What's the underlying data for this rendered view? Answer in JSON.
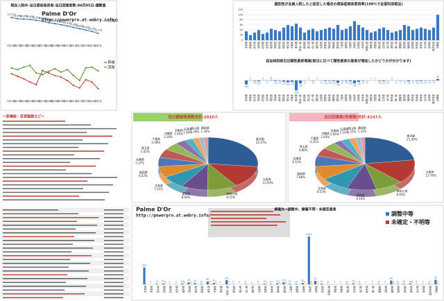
{
  "notes": {
    "heading": "～新機能・変更履歴など～"
  },
  "chart_data": [
    {
      "type": "line",
      "title": "現在入院中-当日感染発表者-当日回復者数-06月05日-趨勢版",
      "annotations": [
        "Palme D'Or",
        "http://powerpro.at.webry.info/"
      ],
      "categories": [
        "5月22日",
        "5月23日",
        "5月24日",
        "5月25日",
        "5月26日",
        "5月27日",
        "5月28日",
        "5月29日",
        "5月30日",
        "5月31日",
        "6月1日",
        "6月2日",
        "6月3日",
        "6月4日",
        "6月5日"
      ],
      "ylim": [
        14000,
        20000
      ],
      "series": [
        {
          "name": "入院中",
          "color": "#2f6db5",
          "values": [
            19213,
            18950,
            18870,
            18820,
            18610,
            18400,
            18100,
            17900,
            17650,
            17400,
            17080,
            16800,
            16500,
            16200,
            15773
          ],
          "value_labels": [
            "19,213",
            "18,950",
            "18,870",
            "18,820",
            "18,610",
            "18,400",
            "18,100",
            "17,900",
            "17,650",
            "17,400",
            "17,080",
            "16,800",
            "16,500",
            "16,200",
            "15,773"
          ]
        }
      ]
    },
    {
      "type": "line",
      "categories": [
        "5月22日",
        "5月23日",
        "5月24日",
        "5月25日",
        "5月26日",
        "5月27日",
        "5月28日",
        "5月29日",
        "5月30日",
        "5月31日",
        "6月1日",
        "6月2日",
        "6月3日",
        "6月4日",
        "6月5日"
      ],
      "ylim": [
        1000,
        6000
      ],
      "series": [
        {
          "name": "新規",
          "color": "#c0392b",
          "values": [
            3800,
            3500,
            3200,
            2800,
            2500,
            4200,
            3900,
            3600,
            3400,
            3000,
            2400,
            2100,
            3100,
            2800,
            2010
          ]
        },
        {
          "name": "回復",
          "color": "#4e8f2b",
          "values": [
            4500,
            4300,
            4600,
            4800,
            3900,
            3700,
            4100,
            4400,
            4000,
            4300,
            3600,
            3000,
            4500,
            4600,
            4147
          ]
        }
      ]
    },
    {
      "type": "bar",
      "title": "識別性が全員入院したと仮定した場合の感染症病床使用率(100%で全室利用相当)",
      "categories": [
        "北海道",
        "青森県",
        "岩手県",
        "宮城県",
        "秋田県",
        "山形県",
        "福島県",
        "茨城県",
        "栃木県",
        "群馬県",
        "埼玉県",
        "千葉県",
        "東京都",
        "神奈川県",
        "新潟県",
        "富山県",
        "石川県",
        "福井県",
        "山梨県",
        "長野県",
        "岐阜県",
        "静岡県",
        "愛知県",
        "三重県",
        "滋賀県",
        "京都府",
        "大阪府",
        "兵庫県",
        "奈良県",
        "和歌山県",
        "鳥取県",
        "島根県",
        "岡山県",
        "広島県",
        "山口県",
        "徳島県",
        "香川県",
        "愛媛県",
        "高知県",
        "福岡県",
        "佐賀県",
        "長崎県",
        "熊本県",
        "大分県",
        "宮崎県",
        "鹿児島県",
        "沖縄県"
      ],
      "values": [
        35,
        20,
        30,
        40,
        25,
        30,
        45,
        40,
        35,
        50,
        60,
        55,
        65,
        50,
        30,
        40,
        45,
        35,
        40,
        45,
        50,
        45,
        60,
        40,
        45,
        55,
        75,
        60,
        50,
        40,
        30,
        35,
        45,
        50,
        40,
        30,
        35,
        40,
        60,
        55,
        40,
        45,
        50,
        45,
        40,
        50,
        100
      ],
      "color": "#3a78c2",
      "ylim": [
        0,
        120
      ],
      "yticks": [
        0,
        20,
        40,
        60,
        80,
        100,
        120
      ],
      "grid": true
    },
    {
      "type": "bar",
      "title": "自治体別前日比陽性患者増減(前日に比べて陽性患者の患者が増加したかどうかが分かります)",
      "categories": [
        "北海道",
        "青森県",
        "岩手県",
        "宮城県",
        "秋田県",
        "山形県",
        "福島県",
        "茨城県",
        "栃木県",
        "群馬県",
        "埼玉県",
        "千葉県",
        "東京都",
        "神奈川県",
        "新潟県",
        "富山県",
        "石川県",
        "福井県",
        "山梨県",
        "長野県",
        "岐阜県",
        "静岡県",
        "愛知県",
        "三重県",
        "滋賀県",
        "京都府",
        "大阪府",
        "兵庫県",
        "奈良県",
        "和歌山県",
        "鳥取県",
        "島根県",
        "岡山県",
        "広島県",
        "山口県",
        "徳島県",
        "香川県",
        "愛媛県",
        "高知県",
        "福岡県",
        "佐賀県",
        "長崎県",
        "熊本県",
        "大分県",
        "宮崎県",
        "鹿児島県",
        "沖縄県"
      ],
      "values": [
        -80,
        5,
        -10,
        -20,
        3,
        -5,
        8,
        -15,
        -10,
        -25,
        -40,
        -30,
        -200,
        -60,
        -5,
        2,
        -8,
        3,
        -4,
        -12,
        -10,
        -15,
        -50,
        -8,
        -10,
        -20,
        -60,
        -30,
        -9,
        -4,
        1,
        2,
        -10,
        -15,
        -6,
        3,
        -2,
        -7,
        -3,
        -20,
        -5,
        -10,
        -12,
        -8,
        -6,
        -9,
        30
      ],
      "color": "#3a78c2",
      "ylim": [
        -250,
        250
      ],
      "data_labels": true
    },
    {
      "type": "pie",
      "title": "当日感染発表数合計:2010人",
      "categories": [
        "東京都",
        "大阪府",
        "神奈川県",
        "愛知県",
        "北海道",
        "福岡県",
        "兵庫県",
        "埼玉県",
        "千葉県",
        "沖縄県",
        "京都府",
        "広島県",
        "岡山県",
        "静岡県"
      ],
      "values": [
        25.47,
        12.94,
        9.15,
        8.06,
        7.21,
        6.52,
        5.37,
        5.02,
        4.48,
        3.18,
        2.49,
        1.99,
        1.49,
        1.34
      ],
      "value_labels": [
        "25.47%",
        "12.94%",
        "9.15%",
        "8.06%",
        "7.21%",
        "6.52%",
        "5.37%",
        "5.02%",
        "4.48%",
        "3.18%",
        "2.49%",
        "1.99%",
        "1.49%",
        "1.34%"
      ],
      "colors": [
        "#2e5d95",
        "#b23a33",
        "#7d9c3a",
        "#6a4d8e",
        "#2f97b0",
        "#e08a2e",
        "#4a78b8",
        "#c05a55",
        "#98b55a",
        "#8a72a8",
        "#4fb0c8",
        "#f0a455",
        "#a0b8d8",
        "#d8a0a0"
      ]
    },
    {
      "type": "pie",
      "title": "当日回復者(死者除)合計:4147人",
      "categories": [
        "東京都",
        "大阪府",
        "神奈川県",
        "愛知県",
        "北海道",
        "福岡県",
        "兵庫県",
        "埼玉県",
        "千葉県",
        "沖縄県",
        "京都府",
        "広島県",
        "岡山県",
        "静岡県"
      ],
      "values": [
        21.4,
        13.76,
        8.44,
        9.1,
        8.53,
        7.86,
        6.12,
        4.8,
        4.25,
        2.4,
        2.66,
        2.1,
        1.52,
        1.31
      ],
      "value_labels": [
        "21.40%",
        "13.76%",
        "8.44%",
        "9.10%",
        "8.53%",
        "7.86%",
        "6.12%",
        "4.80%",
        "4.25%",
        "2.40%",
        "2.66%",
        "2.10%",
        "1.52%",
        "1.31%"
      ],
      "colors": [
        "#2e5d95",
        "#b23a33",
        "#7d9c3a",
        "#6a4d8e",
        "#2f97b0",
        "#e08a2e",
        "#4a78b8",
        "#c05a55",
        "#98b55a",
        "#8a72a8",
        "#4fb0c8",
        "#f0a455",
        "#a0b8d8",
        "#d8a0a0"
      ]
    },
    {
      "type": "bar",
      "title": "療養先→調整中、療養不明・未確定患者",
      "annotations": [
        "Palme D'Or",
        "http://powerpro.at.webry.info/"
      ],
      "categories": [
        "北海道",
        "青森県",
        "岩手県",
        "宮城県",
        "秋田県",
        "山形県",
        "福島県",
        "茨城県",
        "栃木県",
        "群馬県",
        "埼玉県",
        "千葉県",
        "東京都",
        "神奈川県",
        "新潟県",
        "富山県",
        "石川県",
        "福井県",
        "山梨県",
        "長野県",
        "岐阜県",
        "静岡県",
        "愛知県",
        "三重県",
        "滋賀県",
        "京都府",
        "大阪府",
        "兵庫県",
        "奈良県",
        "和歌山県",
        "鳥取県",
        "島根県",
        "岡山県",
        "広島県",
        "山口県",
        "徳島県",
        "香川県",
        "愛媛県",
        "高知県",
        "福岡県",
        "佐賀県",
        "長崎県",
        "熊本県",
        "大分県",
        "宮崎県",
        "鹿児島県",
        "沖縄県"
      ],
      "ylim": [
        0,
        1100
      ],
      "data_labels": true,
      "series": [
        {
          "name": "調整中等",
          "color": "#3a78c2",
          "values": [
            353,
            0,
            12,
            20,
            0,
            3,
            18,
            40,
            25,
            10,
            60,
            30,
            0,
            90,
            5,
            0,
            8,
            2,
            4,
            15,
            10,
            22,
            45,
            12,
            10,
            30,
            1000,
            70,
            15,
            6,
            0,
            2,
            10,
            20,
            8,
            0,
            4,
            6,
            2,
            80,
            10,
            12,
            18,
            6,
            4,
            10,
            95
          ]
        },
        {
          "name": "未確定・不明等",
          "color": "#c0392b",
          "values": [
            0,
            0,
            0,
            2,
            0,
            0,
            1,
            3,
            0,
            0,
            5,
            2,
            0,
            4,
            0,
            0,
            0,
            0,
            0,
            1,
            0,
            2,
            3,
            0,
            0,
            1,
            6,
            2,
            0,
            0,
            0,
            0,
            0,
            1,
            0,
            0,
            0,
            0,
            0,
            3,
            0,
            0,
            1,
            0,
            0,
            0,
            2
          ]
        }
      ]
    }
  ]
}
